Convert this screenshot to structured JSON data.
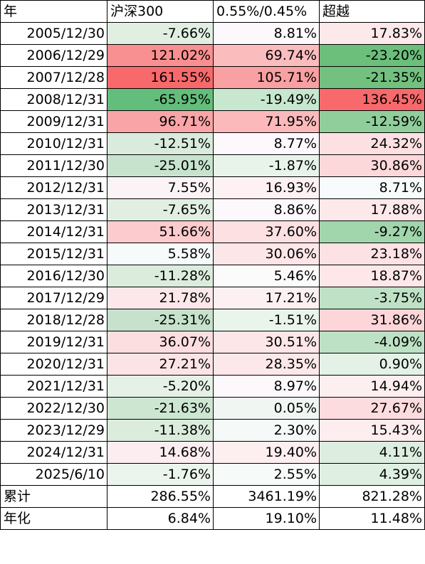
{
  "header": [
    "年",
    "沪深300",
    "0.55%/0.45%",
    "超越"
  ],
  "rows": [
    {
      "year": "2005/12/30",
      "hs300": "-7.66%",
      "strat": "8.81%",
      "excess": "17.83%",
      "c1": "#e1efe2",
      "c2": "#fdf8fb",
      "c3": "#fde8ea"
    },
    {
      "year": "2006/12/29",
      "hs300": "121.02%",
      "strat": "69.74%",
      "excess": "-23.20%",
      "c1": "#f88f90",
      "c2": "#fbbcbe",
      "c3": "#6bbf7b"
    },
    {
      "year": "2007/12/28",
      "hs300": "161.55%",
      "strat": "105.71%",
      "excess": "-21.35%",
      "c1": "#f8696b",
      "c2": "#f9a0a2",
      "c3": "#72c17f"
    },
    {
      "year": "2008/12/31",
      "hs300": "-65.95%",
      "strat": "-19.49%",
      "excess": "136.45%",
      "c1": "#63be7b",
      "c2": "#c8e7cf",
      "c3": "#f8696b"
    },
    {
      "year": "2009/12/31",
      "hs300": "96.71%",
      "strat": "71.95%",
      "excess": "-12.59%",
      "c1": "#f9a4a6",
      "c2": "#fbb9bb",
      "c3": "#90ce9c"
    },
    {
      "year": "2010/12/31",
      "hs300": "-12.51%",
      "strat": "8.77%",
      "excess": "24.32%",
      "c1": "#d9ebdc",
      "c2": "#fdf8fb",
      "c3": "#fce0e2"
    },
    {
      "year": "2011/12/30",
      "hs300": "-25.01%",
      "strat": "-1.87%",
      "excess": "30.86%",
      "c1": "#c7e3cd",
      "c2": "#e8f4ea",
      "c3": "#fcd8da"
    },
    {
      "year": "2012/12/31",
      "hs300": "7.55%",
      "strat": "16.93%",
      "excess": "8.71%",
      "c1": "#fcf3f6",
      "c2": "#fdf1f3",
      "c3": "#f7fbfb"
    },
    {
      "year": "2013/12/31",
      "hs300": "-7.65%",
      "strat": "8.86%",
      "excess": "17.88%",
      "c1": "#e1efe2",
      "c2": "#fdf8fb",
      "c3": "#fde8ea"
    },
    {
      "year": "2014/12/31",
      "hs300": "51.66%",
      "strat": "37.60%",
      "excess": "-9.27%",
      "c1": "#fbcbcd",
      "c2": "#fce0e2",
      "c3": "#a1d5ab"
    },
    {
      "year": "2015/12/31",
      "hs300": "5.58%",
      "strat": "30.06%",
      "excess": "23.18%",
      "c1": "#f7fafb",
      "c2": "#fce6e8",
      "c3": "#fce2e4"
    },
    {
      "year": "2016/12/30",
      "hs300": "-11.28%",
      "strat": "5.46%",
      "excess": "18.87%",
      "c1": "#dbecdd",
      "c2": "#fbfbfc",
      "c3": "#fde7e9"
    },
    {
      "year": "2017/12/29",
      "hs300": "21.78%",
      "strat": "17.21%",
      "excess": "-3.75%",
      "c1": "#fce8ea",
      "c2": "#fdf0f2",
      "c3": "#bfe2c7"
    },
    {
      "year": "2018/12/28",
      "hs300": "-25.31%",
      "strat": "-1.51%",
      "excess": "31.86%",
      "c1": "#c6e2cc",
      "c2": "#e9f4eb",
      "c3": "#fcd6d8"
    },
    {
      "year": "2019/12/31",
      "hs300": "36.07%",
      "strat": "30.51%",
      "excess": "-4.09%",
      "c1": "#fcdde0",
      "c2": "#fce6e8",
      "c3": "#bde1c5"
    },
    {
      "year": "2020/12/31",
      "hs300": "27.21%",
      "strat": "28.35%",
      "excess": "0.90%",
      "c1": "#fce4e6",
      "c2": "#fce8ea",
      "c3": "#e4f1e6"
    },
    {
      "year": "2021/12/31",
      "hs300": "-5.20%",
      "strat": "8.97%",
      "excess": "14.94%",
      "c1": "#e5f1e7",
      "c2": "#fdf8fb",
      "c3": "#fdeef0"
    },
    {
      "year": "2022/12/30",
      "hs300": "-21.63%",
      "strat": "0.05%",
      "excess": "27.67%",
      "c1": "#cde6d2",
      "c2": "#f0f7f2",
      "c3": "#fcdcde"
    },
    {
      "year": "2023/12/29",
      "hs300": "-11.38%",
      "strat": "2.30%",
      "excess": "15.43%",
      "c1": "#dbecdd",
      "c2": "#f5f9f7",
      "c3": "#fdedef"
    },
    {
      "year": "2024/12/31",
      "hs300": "14.68%",
      "strat": "19.40%",
      "excess": "4.11%",
      "c1": "#fcedf0",
      "c2": "#fdeef0",
      "c3": "#ddeee0"
    },
    {
      "year": "2025/6/10",
      "hs300": "-1.76%",
      "strat": "2.55%",
      "excess": "4.39%",
      "c1": "#ebf5ed",
      "c2": "#f6faf8",
      "c3": "#dfefe2"
    }
  ],
  "summary": [
    {
      "label": "累计",
      "hs300": "286.55%",
      "strat": "3461.19%",
      "excess": "821.28%"
    },
    {
      "label": "年化",
      "hs300": "6.84%",
      "strat": "19.10%",
      "excess": "11.48%"
    }
  ]
}
